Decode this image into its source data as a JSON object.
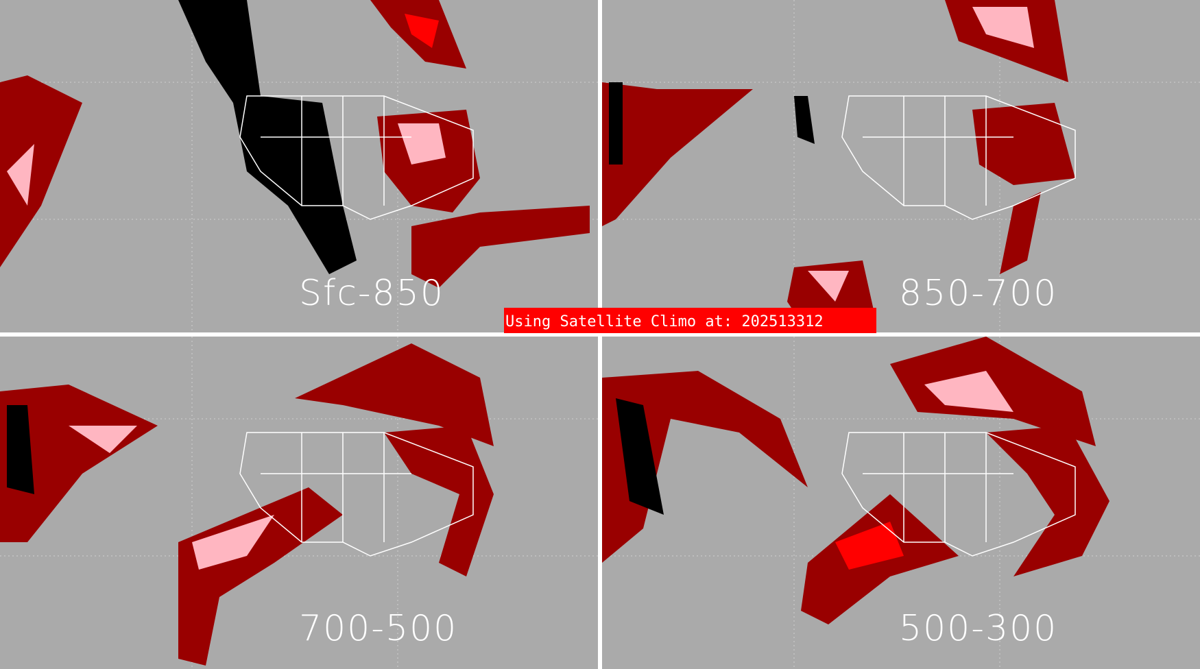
{
  "panels": [
    {
      "label": "Sfc-850"
    },
    {
      "label": "850-700"
    },
    {
      "label": "700-500"
    },
    {
      "label": "500-300"
    }
  ],
  "banner": {
    "text": "Using Satellite Climo at: 202513312"
  },
  "colors": {
    "background": "#aaaaaa",
    "dark_red": "#990000",
    "red": "#ff0000",
    "pink": "#ffb6c1",
    "brown": "#9a7070",
    "black": "#000000",
    "outline": "#ffffff"
  }
}
